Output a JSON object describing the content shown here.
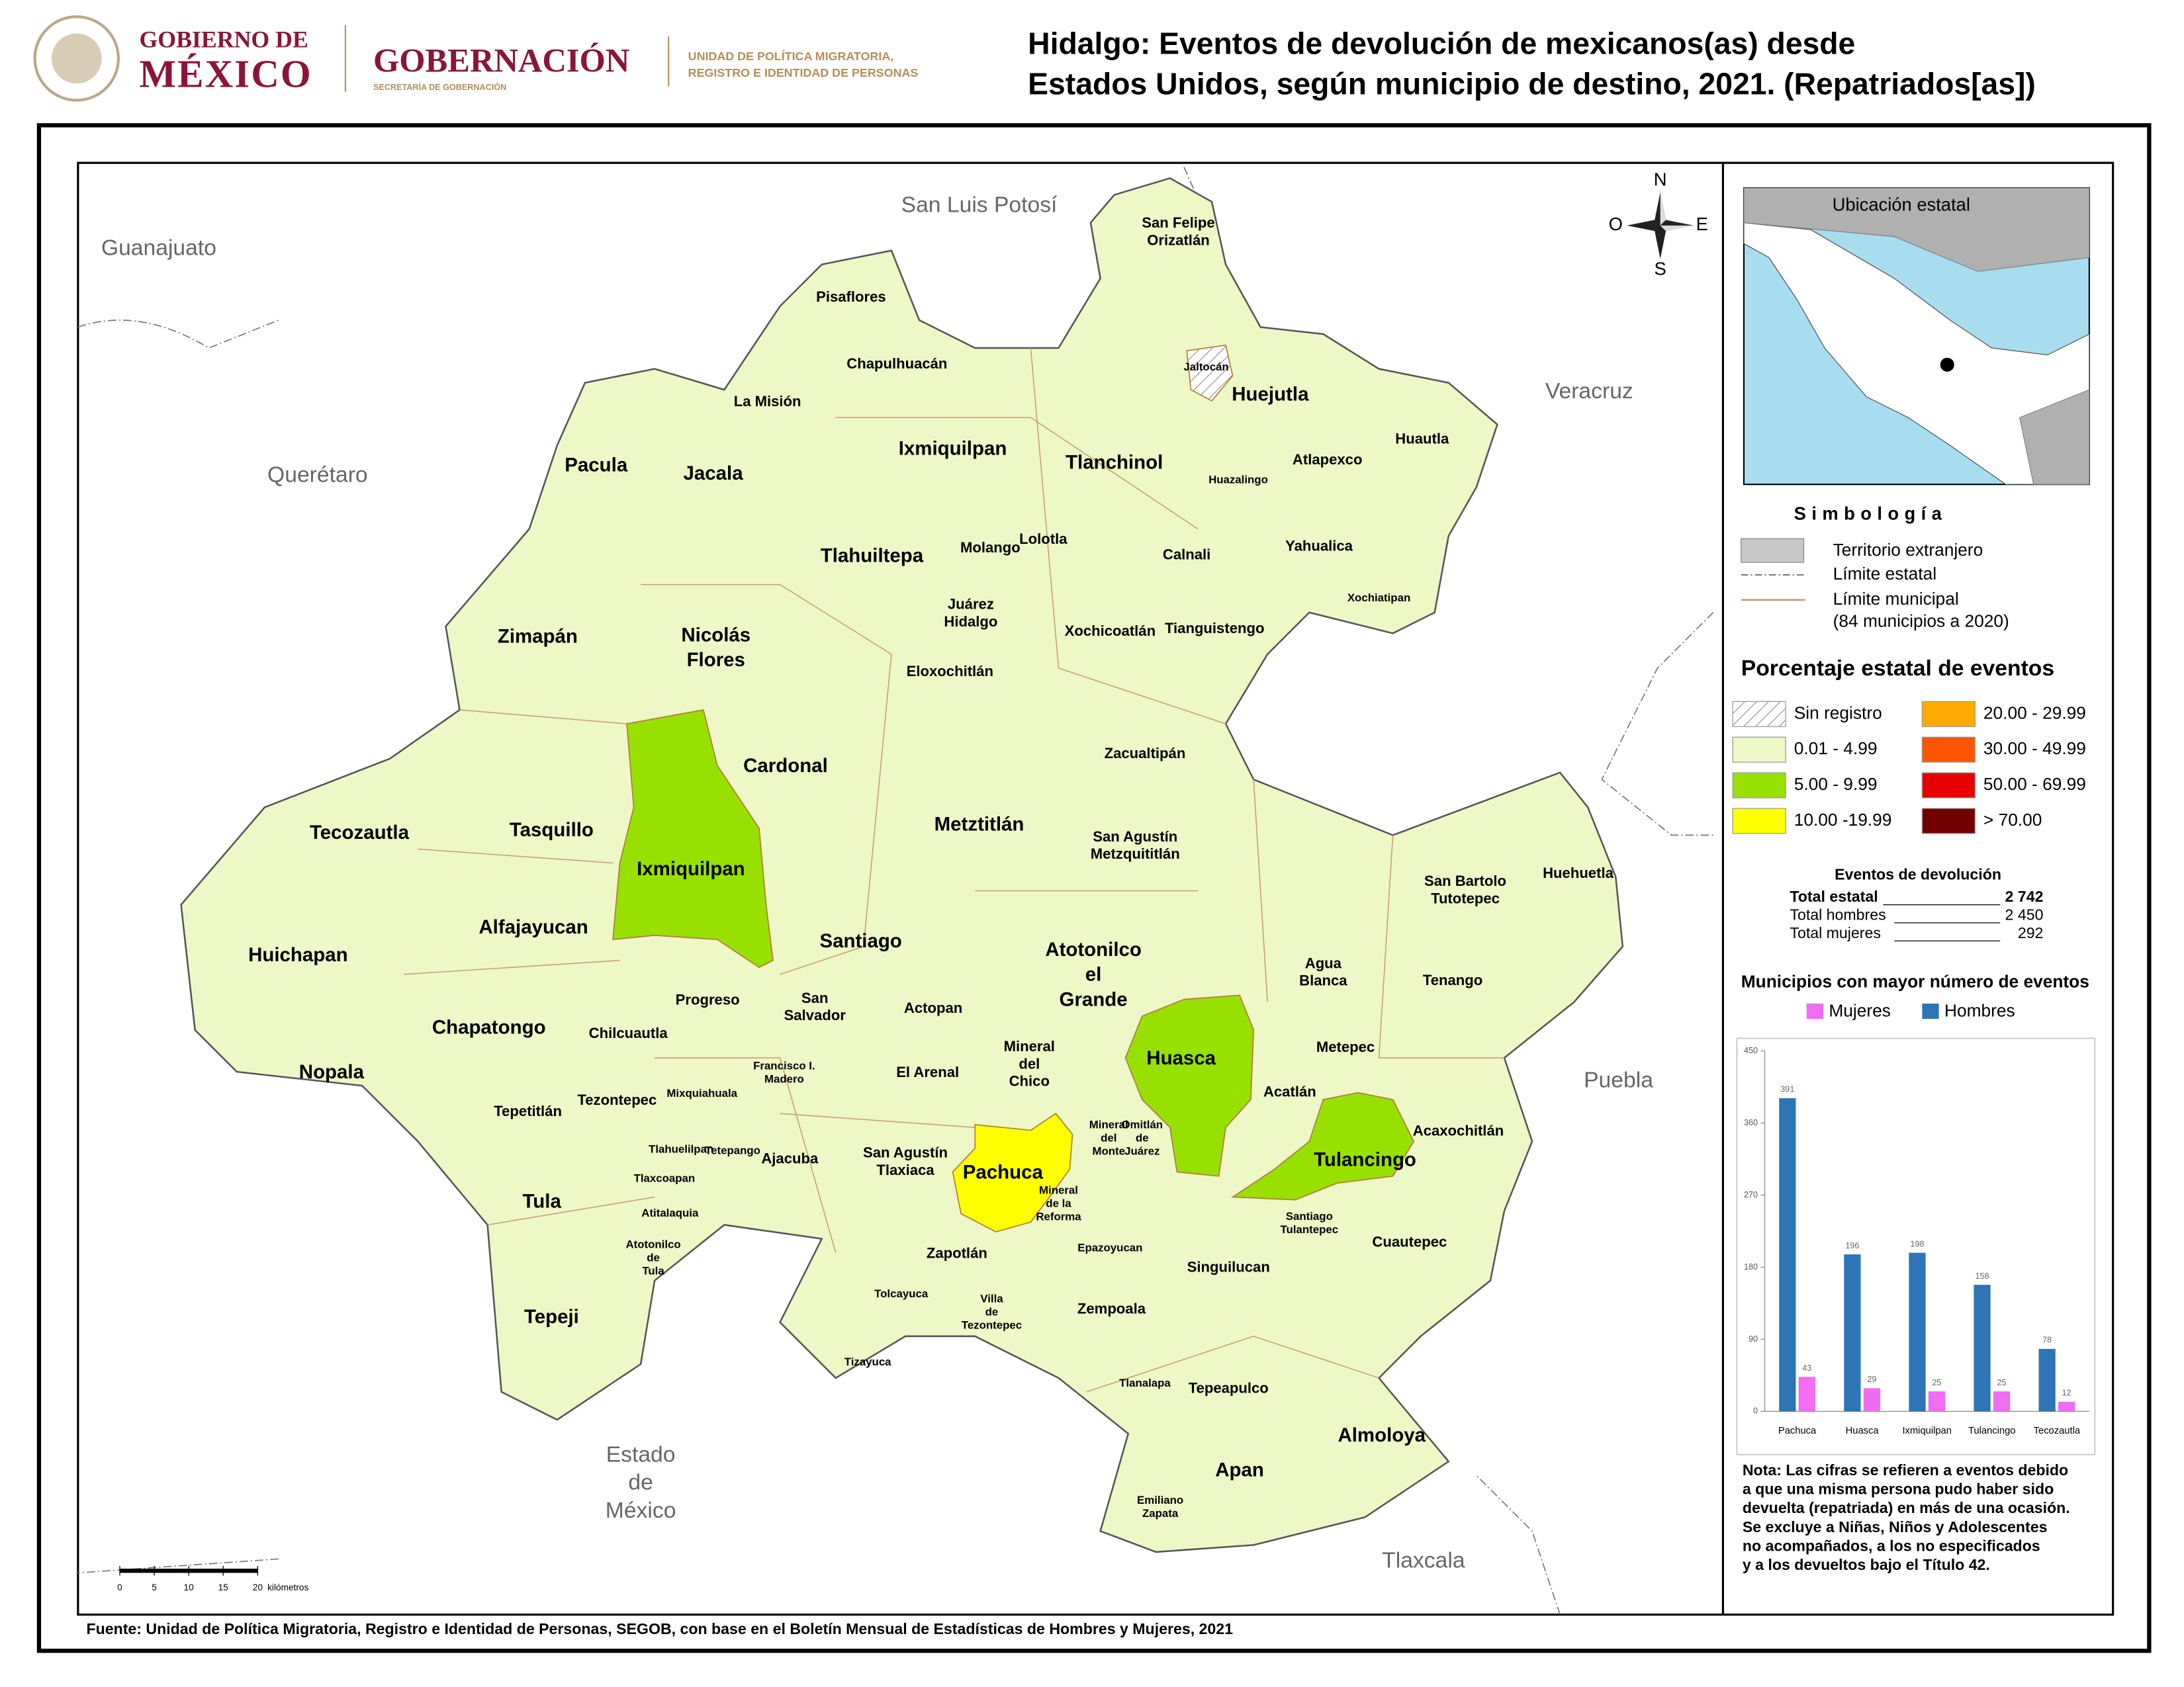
{
  "header": {
    "gov_line1": "GOBIERNO DE",
    "gov_line2": "MÉXICO",
    "ministry": "GOBERNACIÓN",
    "ministry_sub": "SECRETARÍA DE GOBERNACIÓN",
    "unit": [
      "UNIDAD DE POLÍTICA MIGRATORIA,",
      "REGISTRO E IDENTIDAD DE PERSONAS"
    ],
    "title": [
      "Hidalgo: Eventos de devolución de mexicanos(as) desde",
      "Estados Unidos, según municipio de destino, 2021. (Repatriados[as])"
    ]
  },
  "map": {
    "states": [
      [
        "San Luis Potosí"
      ],
      [
        "Guanajuato"
      ],
      [
        "Querétaro"
      ],
      [
        "Veracruz"
      ],
      [
        "Puebla"
      ],
      [
        "Estado",
        "de",
        "México"
      ],
      [
        "Tlaxcala"
      ]
    ],
    "municipalities_large": [
      [
        "Pacula"
      ],
      [
        "Jacala"
      ],
      [
        "Ixmiquilpan"
      ],
      [
        "Tlanchinol"
      ],
      [
        "Huejutla"
      ],
      [
        "Tlahuiltepa"
      ],
      [
        "Zimapán"
      ],
      [
        "Nicolás",
        "Flores"
      ],
      [
        "Cardonal"
      ],
      [
        "Metztitlán"
      ],
      [
        "Tecozautla"
      ],
      [
        "Tasquillo"
      ],
      [
        "Ixmiquilpan"
      ],
      [
        "Alfajayucan"
      ],
      [
        "Santiago"
      ],
      [
        "Huichapan"
      ],
      [
        "Atotonilco",
        "el",
        "Grande"
      ],
      [
        "Chapatongo"
      ],
      [
        "Nopala"
      ],
      [
        "Huasca"
      ],
      [
        "Tulancingo"
      ],
      [
        "Pachuca"
      ],
      [
        "Tula"
      ],
      [
        "Tepeji"
      ],
      [
        "Apan"
      ],
      [
        "Almoloya"
      ]
    ],
    "municipalities_small": [
      [
        "Pisaflores"
      ],
      [
        "Chapulhuacán"
      ],
      [
        "La Misión"
      ],
      [
        "San Felipe",
        "Orizatlán"
      ],
      [
        "Huautla"
      ],
      [
        "Atlapexco"
      ],
      [
        "Molango"
      ],
      [
        "Lolotla"
      ],
      [
        "Calnali"
      ],
      [
        "Yahualica"
      ],
      [
        "Juárez",
        "Hidalgo"
      ],
      [
        "Xochicoatlán"
      ],
      [
        "Tianguistengo"
      ],
      [
        "Eloxochitlán"
      ],
      [
        "Zacualtipán"
      ],
      [
        "San Agustín",
        "Metzquititlán"
      ],
      [
        "San Bartolo",
        "Tutotepec"
      ],
      [
        "Huehuetla"
      ],
      [
        "Agua",
        "Blanca"
      ],
      [
        "Tenango"
      ],
      [
        "Progreso"
      ],
      [
        "San",
        "Salvador"
      ],
      [
        "Actopan"
      ],
      [
        "Chilcuautla"
      ],
      [
        "Metepec"
      ],
      [
        "Mineral",
        "del",
        "Chico"
      ],
      [
        "El Arenal"
      ],
      [
        "Acatlán"
      ],
      [
        "Tepetitlán"
      ],
      [
        "Tezontepec"
      ],
      [
        "Acaxochitlán"
      ],
      [
        "Ajacuba"
      ],
      [
        "San Agustín",
        "Tlaxiaca"
      ],
      [
        "Cuautepec"
      ],
      [
        "Zapotlán"
      ],
      [
        "Singuilucan"
      ],
      [
        "Tepeapulco"
      ],
      [
        "Zempoala"
      ]
    ],
    "municipalities_tiny": [
      [
        "Jaltocán"
      ],
      [
        "Huazalingo"
      ],
      [
        "Xochiatipan"
      ],
      [
        "Francisco I.",
        "Madero"
      ],
      [
        "Mixquiahuala"
      ],
      [
        "Omitlán",
        "de",
        "Juárez"
      ],
      [
        "Mineral",
        "del",
        "Monte"
      ],
      [
        "Tlahuelilpan"
      ],
      [
        "Tetepango"
      ],
      [
        "Tlaxcoapan"
      ],
      [
        "Mineral",
        "de la",
        "Reforma"
      ],
      [
        "Atitalaquia"
      ],
      [
        "Santiago",
        "Tulantepec"
      ],
      [
        "Atotonilco",
        "de",
        "Tula"
      ],
      [
        "Epazoyucan"
      ],
      [
        "Tolcayuca"
      ],
      [
        "Villa",
        "de",
        "Tezontepec"
      ],
      [
        "Tizayuca"
      ],
      [
        "Tlanalapa"
      ],
      [
        "Emiliano",
        "Zapata"
      ]
    ],
    "compass": {
      "north": "N",
      "west": "O",
      "east": "E",
      "south": "S"
    },
    "scale": {
      "ticks": [
        0,
        5,
        10,
        15,
        20
      ],
      "unit": "kilómetros"
    }
  },
  "inset": {
    "title": "Ubicación estatal"
  },
  "legend": {
    "title": "Simbología",
    "items": [
      "Territorio extranjero",
      "Límite estatal",
      "Límite municipal",
      "(84 municipios a 2020)"
    ],
    "classes_title": "Porcentaje estatal de eventos",
    "classes": [
      {
        "label": "Sin registro"
      },
      {
        "label": "0.01  - 4.99",
        "color": "#eef7c6"
      },
      {
        "label": "5.00  - 9.99",
        "color": "#98e000"
      },
      {
        "label": "10.00 -19.99",
        "color": "#ffff00"
      },
      {
        "label": "20.00 - 29.99",
        "color": "#ffaa00"
      },
      {
        "label": "30.00 - 49.99",
        "color": "#ff5500"
      },
      {
        "label": "50.00 - 69.99",
        "color": "#e60000"
      },
      {
        "label": "> 70.00",
        "color": "#730000"
      }
    ],
    "events": {
      "title": "Eventos de devolución",
      "rows": [
        {
          "label": "Total estatal",
          "value": "2 742"
        },
        {
          "label": "Total hombres",
          "value": "2 450"
        },
        {
          "label": "Total mujeres",
          "value": "292"
        }
      ]
    }
  },
  "chart_data": {
    "type": "bar",
    "title": "Municipios con mayor número de eventos",
    "categories": [
      "Pachuca",
      "Huasca",
      "Ixmiquilpan",
      "Tulancingo",
      "Tecozautla"
    ],
    "series": [
      {
        "name": "Mujeres",
        "color": "#f06cf0",
        "values": [
          43,
          29,
          25,
          25,
          12
        ]
      },
      {
        "name": "Hombres",
        "color": "#2e75b6",
        "values": [
          391,
          196,
          198,
          158,
          78
        ]
      }
    ],
    "ylim": [
      0,
      450
    ],
    "yticks": [
      0,
      90,
      180,
      270,
      360,
      450
    ],
    "grid": false
  },
  "note": [
    "Nota: Las cifras se refieren a eventos debido",
    "a que una misma persona pudo haber sido",
    "devuelta (repatriada) en más de una ocasión.",
    "Se excluye a Niñas, Niños y Adolescentes",
    "no acompañados, a los no especificados",
    "y a los devueltos bajo el Título 42."
  ],
  "source": "Fuente: Unidad de Política Migratoria, Registro e Identidad de Personas, SEGOB, con base en el Boletín Mensual de Estadísticas de Hombres y Mujeres, 2021"
}
